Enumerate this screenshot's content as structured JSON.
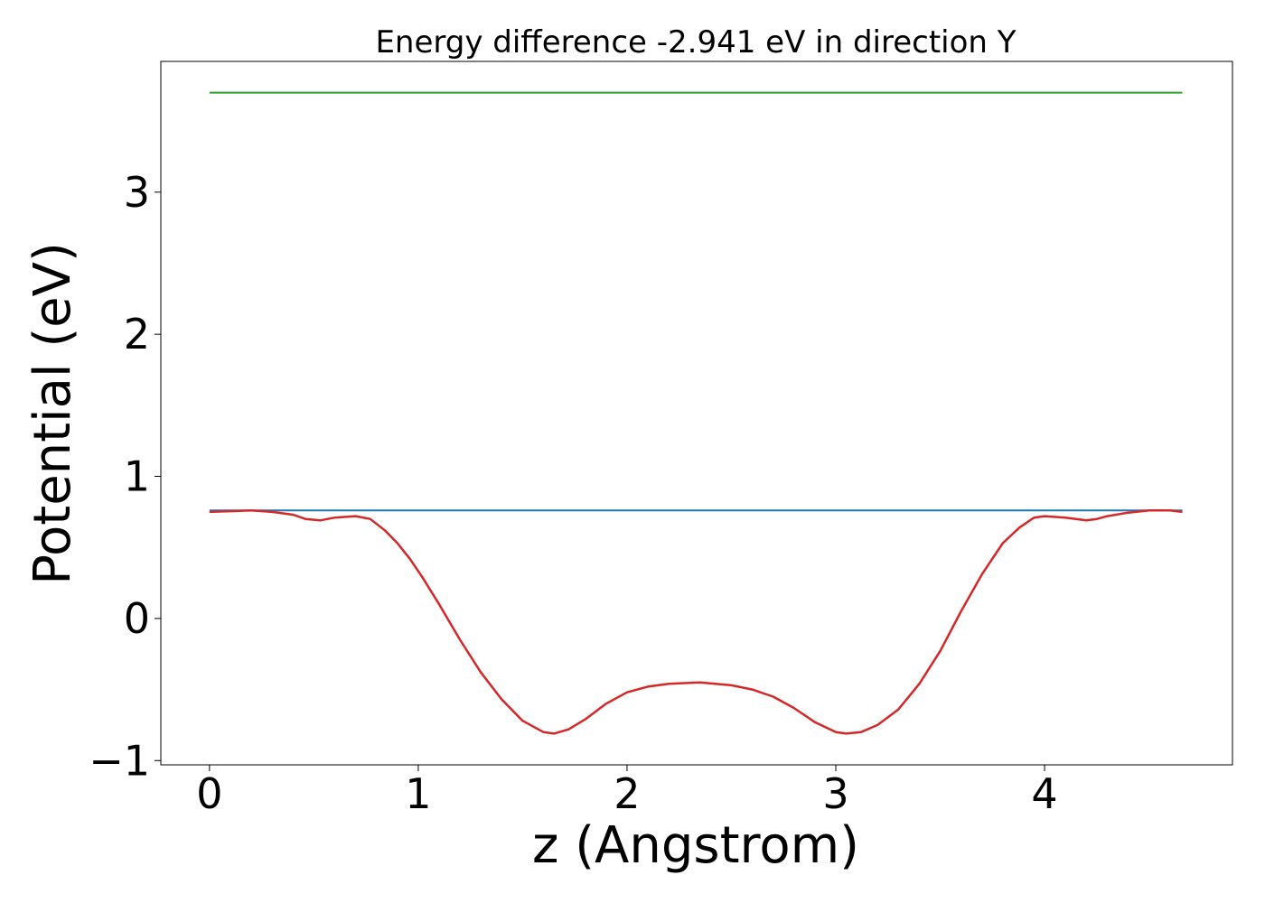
{
  "chart_data": {
    "type": "line",
    "title": "Energy difference -2.941 eV in direction Y",
    "xlabel": "z (Angstrom)",
    "ylabel": "Potential (eV)",
    "xlim": [
      -0.233,
      4.9
    ],
    "ylim": [
      -1.03,
      3.92
    ],
    "xticks": [
      0,
      1,
      2,
      3,
      4
    ],
    "yticks": [
      -1,
      0,
      1,
      2,
      3
    ],
    "xtick_labels": [
      "0",
      "1",
      "2",
      "3",
      "4"
    ],
    "ytick_labels": [
      "−1",
      "0",
      "1",
      "2",
      "3"
    ],
    "grid": false,
    "legend": "none",
    "series": [
      {
        "color": "#2ca02c",
        "x": [
          0,
          4.66
        ],
        "y": [
          3.7,
          3.7
        ]
      },
      {
        "color": "#1f77b4",
        "x": [
          0,
          4.66
        ],
        "y": [
          0.76,
          0.76
        ]
      },
      {
        "color": "#d62728",
        "x": [
          0,
          0.1,
          0.2,
          0.3,
          0.4,
          0.46,
          0.53,
          0.6,
          0.7,
          0.77,
          0.84,
          0.9,
          0.96,
          1.02,
          1.1,
          1.2,
          1.3,
          1.4,
          1.5,
          1.6,
          1.65,
          1.72,
          1.8,
          1.9,
          2.0,
          2.1,
          2.2,
          2.35,
          2.5,
          2.6,
          2.7,
          2.8,
          2.9,
          3.0,
          3.05,
          3.12,
          3.2,
          3.3,
          3.4,
          3.5,
          3.6,
          3.7,
          3.8,
          3.88,
          3.95,
          4.0,
          4.1,
          4.2,
          4.25,
          4.3,
          4.4,
          4.5,
          4.6,
          4.66
        ],
        "y": [
          0.75,
          0.755,
          0.76,
          0.75,
          0.73,
          0.7,
          0.69,
          0.71,
          0.72,
          0.7,
          0.62,
          0.53,
          0.42,
          0.29,
          0.1,
          -0.15,
          -0.38,
          -0.57,
          -0.72,
          -0.8,
          -0.81,
          -0.78,
          -0.71,
          -0.6,
          -0.52,
          -0.48,
          -0.46,
          -0.45,
          -0.47,
          -0.5,
          -0.55,
          -0.63,
          -0.73,
          -0.8,
          -0.81,
          -0.8,
          -0.75,
          -0.64,
          -0.46,
          -0.23,
          0.05,
          0.31,
          0.53,
          0.64,
          0.71,
          0.72,
          0.71,
          0.69,
          0.7,
          0.72,
          0.745,
          0.76,
          0.76,
          0.75
        ]
      }
    ]
  }
}
